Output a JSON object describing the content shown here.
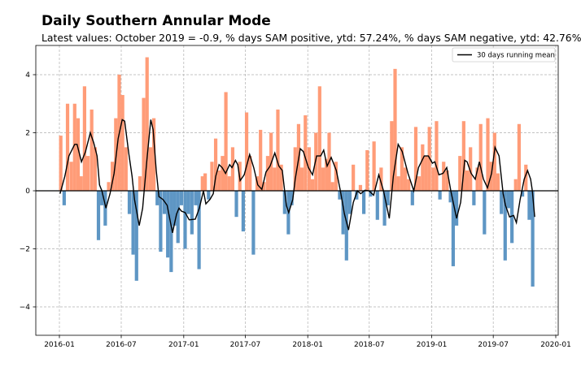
{
  "chart_data": {
    "type": "bar",
    "title": "Daily Southern Annular Mode",
    "subtitle": "Latest values: October 2019 = -0.9, % days SAM positive, ytd: 57.24%, % days SAM negative, ytd: 42.76%",
    "xlabel": "",
    "ylabel": "",
    "ylim": [
      -5,
      5
    ],
    "xlim": [
      "2015-10-10",
      "2020-01-05"
    ],
    "yticks": [
      "−4",
      "−2",
      "0",
      "2",
      "4"
    ],
    "ytick_values": [
      -4,
      -2,
      0,
      2,
      4
    ],
    "xticks": [
      "2016-01",
      "2016-07",
      "2017-01",
      "2017-07",
      "2018-01",
      "2018-07",
      "2019-01",
      "2019-07",
      "2020-01"
    ],
    "grid": true,
    "legend": {
      "placement": "top-right",
      "entries": [
        "30 days running mean"
      ]
    },
    "colors": {
      "positive": "#ff9c78",
      "negative": "#5e96c4",
      "running_mean": "#000000",
      "zero_line": "#000000"
    },
    "daily_sam_days_of_month": [
      5,
      15,
      25
    ],
    "daily_sam": {
      "2016-01": [
        1.9,
        -0.5,
        3.0
      ],
      "2016-02": [
        1.0,
        3.0,
        2.5
      ],
      "2016-03": [
        0.5,
        3.6,
        1.2
      ],
      "2016-04": [
        2.8,
        1.5,
        -1.7
      ],
      "2016-05": [
        -0.5,
        -1.2,
        0.3
      ],
      "2016-06": [
        1.0,
        2.5,
        4.0
      ],
      "2016-07": [
        3.3,
        1.5,
        -0.8
      ],
      "2016-08": [
        -2.2,
        -3.1,
        0.5
      ],
      "2016-09": [
        3.2,
        4.6,
        1.5
      ],
      "2016-10": [
        2.5,
        -0.5,
        -2.1
      ],
      "2016-11": [
        -0.8,
        -2.3,
        -2.8
      ],
      "2016-12": [
        -1.2,
        -1.8,
        -0.5
      ],
      "2017-01": [
        -2.0,
        -0.8,
        -1.5
      ],
      "2017-02": [
        -0.5,
        -2.7,
        0.5
      ],
      "2017-03": [
        0.6,
        -0.3,
        1.0
      ],
      "2017-04": [
        1.8,
        0.7,
        1.2
      ],
      "2017-05": [
        3.4,
        0.5,
        1.5
      ],
      "2017-06": [
        -0.9,
        1.0,
        -1.4
      ],
      "2017-07": [
        2.7,
        1.2,
        -2.2
      ],
      "2017-08": [
        0.5,
        2.1,
        0.3
      ],
      "2017-09": [
        1.2,
        2.0,
        0.8
      ],
      "2017-10": [
        2.8,
        0.9,
        -0.8
      ],
      "2017-11": [
        -1.5,
        -0.5,
        1.5
      ],
      "2017-12": [
        2.3,
        0.8,
        2.6
      ],
      "2018-01": [
        1.5,
        0.4,
        2.0
      ],
      "2018-02": [
        3.6,
        0.8,
        1.1
      ],
      "2018-03": [
        2.0,
        0.3,
        1.0
      ],
      "2018-04": [
        -0.3,
        -1.5,
        -2.4
      ],
      "2018-05": [
        -0.8,
        0.9,
        -0.3
      ],
      "2018-06": [
        0.2,
        -0.8,
        1.4
      ],
      "2018-07": [
        -0.2,
        1.7,
        -1.0
      ],
      "2018-08": [
        0.8,
        -1.2,
        -0.5
      ],
      "2018-09": [
        2.4,
        4.2,
        0.5
      ],
      "2018-10": [
        1.5,
        0.8,
        0.4
      ],
      "2018-11": [
        -0.5,
        2.2,
        0.5
      ],
      "2018-12": [
        1.6,
        1.2,
        2.2
      ],
      "2019-01": [
        0.8,
        2.4,
        -0.3
      ],
      "2019-02": [
        1.0,
        0.7,
        -0.4
      ],
      "2019-03": [
        -2.6,
        -1.2,
        1.2
      ],
      "2019-04": [
        2.4,
        0.7,
        1.5
      ],
      "2019-05": [
        -0.5,
        0.8,
        2.3
      ],
      "2019-06": [
        -1.5,
        2.5,
        1.0
      ],
      "2019-07": [
        2.0,
        0.6,
        -0.8
      ],
      "2019-08": [
        -2.4,
        -0.6,
        -1.8
      ],
      "2019-09": [
        0.4,
        2.3,
        -0.2
      ],
      "2019-10": [
        0.9,
        -1.0,
        -3.3
      ]
    },
    "running_mean": [
      [
        "2016-01-03",
        -0.1
      ],
      [
        "2016-01-17",
        0.5
      ],
      [
        "2016-01-29",
        1.2
      ],
      [
        "2016-02-15",
        1.6
      ],
      [
        "2016-02-22",
        1.6
      ],
      [
        "2016-03-06",
        1.0
      ],
      [
        "2016-03-18",
        1.35
      ],
      [
        "2016-04-01",
        2.0
      ],
      [
        "2016-04-11",
        1.65
      ],
      [
        "2016-04-21",
        1.2
      ],
      [
        "2016-04-28",
        0.2
      ],
      [
        "2016-05-05",
        0.0
      ],
      [
        "2016-05-17",
        -0.6
      ],
      [
        "2016-05-29",
        -0.1
      ],
      [
        "2016-06-10",
        0.6
      ],
      [
        "2016-06-22",
        1.8
      ],
      [
        "2016-07-04",
        2.45
      ],
      [
        "2016-07-11",
        2.4
      ],
      [
        "2016-07-23",
        1.3
      ],
      [
        "2016-08-02",
        0.5
      ],
      [
        "2016-08-09",
        -0.3
      ],
      [
        "2016-08-23",
        -1.2
      ],
      [
        "2016-09-02",
        -0.6
      ],
      [
        "2016-09-14",
        1.0
      ],
      [
        "2016-09-26",
        2.45
      ],
      [
        "2016-10-03",
        2.1
      ],
      [
        "2016-10-12",
        0.7
      ],
      [
        "2016-10-20",
        -0.2
      ],
      [
        "2016-11-01",
        -0.3
      ],
      [
        "2016-11-13",
        -0.5
      ],
      [
        "2016-11-29",
        -1.45
      ],
      [
        "2016-12-11",
        -0.8
      ],
      [
        "2016-12-18",
        -0.6
      ],
      [
        "2016-12-25",
        -0.7
      ],
      [
        "2017-01-05",
        -0.75
      ],
      [
        "2017-01-17",
        -1.0
      ],
      [
        "2017-02-04",
        -0.98
      ],
      [
        "2017-02-16",
        -0.6
      ],
      [
        "2017-02-28",
        0.0
      ],
      [
        "2017-03-07",
        -0.45
      ],
      [
        "2017-03-19",
        -0.3
      ],
      [
        "2017-03-29",
        -0.1
      ],
      [
        "2017-04-05",
        0.5
      ],
      [
        "2017-04-15",
        0.9
      ],
      [
        "2017-04-24",
        0.8
      ],
      [
        "2017-05-04",
        0.6
      ],
      [
        "2017-05-16",
        0.9
      ],
      [
        "2017-05-23",
        0.8
      ],
      [
        "2017-06-02",
        1.05
      ],
      [
        "2017-06-09",
        0.9
      ],
      [
        "2017-06-16",
        0.35
      ],
      [
        "2017-06-28",
        0.55
      ],
      [
        "2017-07-14",
        1.25
      ],
      [
        "2017-07-26",
        0.8
      ],
      [
        "2017-08-07",
        0.2
      ],
      [
        "2017-08-19",
        0.05
      ],
      [
        "2017-08-31",
        0.65
      ],
      [
        "2017-09-12",
        0.85
      ],
      [
        "2017-09-26",
        1.3
      ],
      [
        "2017-10-08",
        0.85
      ],
      [
        "2017-10-18",
        0.7
      ],
      [
        "2017-10-30",
        -0.5
      ],
      [
        "2017-11-06",
        -0.75
      ],
      [
        "2017-11-18",
        -0.3
      ],
      [
        "2017-11-25",
        0.4
      ],
      [
        "2017-12-10",
        1.45
      ],
      [
        "2017-12-19",
        1.35
      ],
      [
        "2018-01-03",
        0.8
      ],
      [
        "2018-01-15",
        0.55
      ],
      [
        "2018-01-27",
        1.2
      ],
      [
        "2018-02-08",
        1.2
      ],
      [
        "2018-02-17",
        1.4
      ],
      [
        "2018-02-27",
        0.85
      ],
      [
        "2018-03-11",
        1.15
      ],
      [
        "2018-03-26",
        0.7
      ],
      [
        "2018-04-07",
        0.0
      ],
      [
        "2018-04-19",
        -0.8
      ],
      [
        "2018-05-01",
        -1.35
      ],
      [
        "2018-05-15",
        -0.4
      ],
      [
        "2018-05-27",
        0.0
      ],
      [
        "2018-06-06",
        -0.1
      ],
      [
        "2018-06-18",
        0.02
      ],
      [
        "2018-06-30",
        0.0
      ],
      [
        "2018-07-14",
        -0.15
      ],
      [
        "2018-07-29",
        0.55
      ],
      [
        "2018-08-12",
        0.0
      ],
      [
        "2018-08-29",
        -0.95
      ],
      [
        "2018-09-10",
        0.5
      ],
      [
        "2018-09-24",
        1.6
      ],
      [
        "2018-10-06",
        1.35
      ],
      [
        "2018-10-23",
        0.6
      ],
      [
        "2018-11-09",
        0.0
      ],
      [
        "2018-11-23",
        0.8
      ],
      [
        "2018-12-10",
        1.2
      ],
      [
        "2018-12-22",
        1.2
      ],
      [
        "2019-01-03",
        0.95
      ],
      [
        "2019-01-10",
        1.0
      ],
      [
        "2019-01-22",
        0.55
      ],
      [
        "2019-02-03",
        0.6
      ],
      [
        "2019-02-14",
        0.8
      ],
      [
        "2019-02-26",
        0.0
      ],
      [
        "2019-03-15",
        -0.95
      ],
      [
        "2019-03-27",
        -0.4
      ],
      [
        "2019-04-08",
        1.05
      ],
      [
        "2019-04-15",
        1.0
      ],
      [
        "2019-04-27",
        0.6
      ],
      [
        "2019-05-09",
        0.4
      ],
      [
        "2019-05-21",
        1.0
      ],
      [
        "2019-06-02",
        0.4
      ],
      [
        "2019-06-14",
        0.1
      ],
      [
        "2019-06-26",
        0.6
      ],
      [
        "2019-07-06",
        1.5
      ],
      [
        "2019-07-18",
        1.2
      ],
      [
        "2019-07-30",
        -0.1
      ],
      [
        "2019-08-06",
        -0.5
      ],
      [
        "2019-08-18",
        -0.9
      ],
      [
        "2019-08-30",
        -0.85
      ],
      [
        "2019-09-07",
        -1.1
      ],
      [
        "2019-09-18",
        -0.3
      ],
      [
        "2019-09-30",
        0.4
      ],
      [
        "2019-10-10",
        0.7
      ],
      [
        "2019-10-19",
        0.4
      ],
      [
        "2019-10-24",
        0.0
      ],
      [
        "2019-10-31",
        -0.9
      ]
    ]
  }
}
